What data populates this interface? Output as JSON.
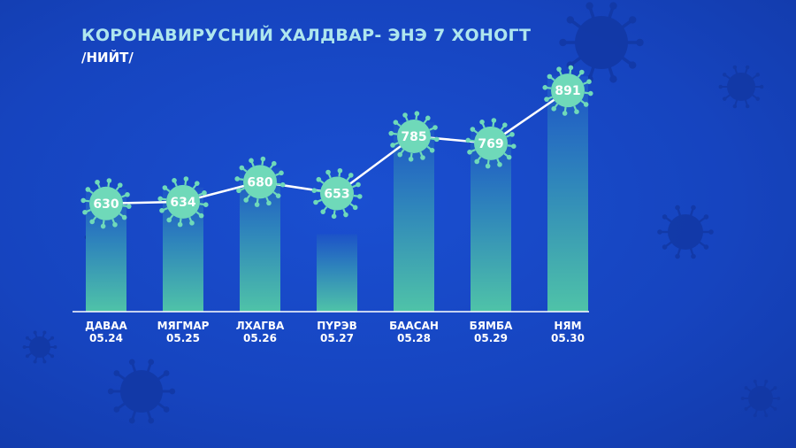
{
  "colors": {
    "bar_top": "#1c52c8",
    "bar_bottom": "#4fc3a8",
    "marker": "#6fd9b9",
    "line": "#ffffff",
    "decor_virus": "#1238a4"
  },
  "chart_data": {
    "type": "bar",
    "title": "КОРОНАВИРУСНИЙ ХАЛДВАР- ЭНЭ 7 ХОНОГТ",
    "subtitle": "/НИЙТ/",
    "categories": [
      "ДАВАА",
      "МЯГМАР",
      "ЛХАГВА",
      "ПҮРЭВ",
      "БААСАН",
      "БЯМБА",
      "НЯМ"
    ],
    "dates": [
      "05.24",
      "05.25",
      "05.26",
      "05.27",
      "05.28",
      "05.29",
      "05.30"
    ],
    "values": [
      630,
      634,
      680,
      653,
      785,
      769,
      891
    ],
    "overlay": "line",
    "data_labels": true,
    "grid": false,
    "legend": "none",
    "ylim": [
      380,
      920
    ]
  }
}
